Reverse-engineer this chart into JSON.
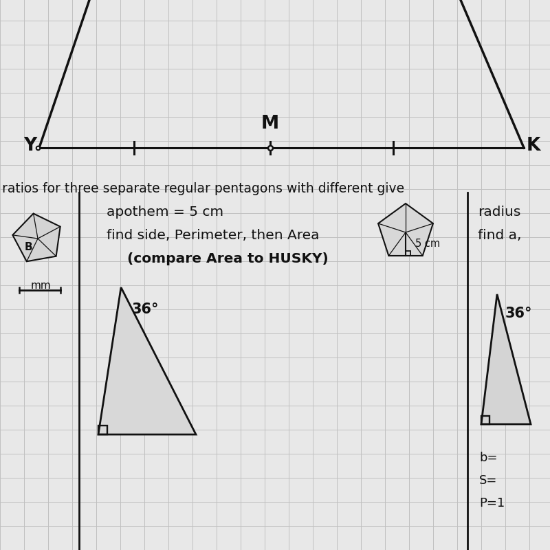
{
  "bg_color": "#e8e8e8",
  "grid_color": "#c0c0c0",
  "line_color": "#111111",
  "title_text": "ratios for three separate regular pentagons with different give",
  "text1_line1": "apothem = 5 cm",
  "text1_line2": "find side, Perimeter, then Area",
  "text1_line3": "(compare Area to HUSKY)",
  "text2_line1": "radius",
  "text2_line2": "find a,",
  "label_5cm": "5 cm",
  "label_36_left": "36°",
  "label_36_right": "36°",
  "label_mm": "mm",
  "label_Y": "Y",
  "label_M": "M",
  "label_K": "K",
  "label_B": "B",
  "label_b": "b=",
  "label_S": "S=",
  "label_P": "P=1"
}
